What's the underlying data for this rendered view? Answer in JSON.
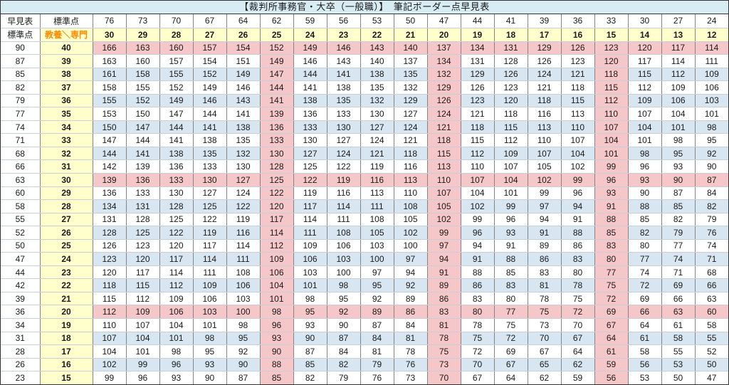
{
  "chart_data": {
    "type": "table",
    "title": "【裁判所事務官・大卒（一般職）】　筆記ボーダー点早見表",
    "corner": {
      "tl": "早見表",
      "tr": "標準点",
      "bl": "標準点",
      "br": "教養＼専門"
    },
    "col_headers_standard": [
      76,
      73,
      70,
      67,
      64,
      62,
      59,
      56,
      53,
      50,
      47,
      44,
      41,
      39,
      36,
      33,
      30,
      27,
      24
    ],
    "col_headers_raw": [
      30,
      29,
      28,
      27,
      26,
      25,
      24,
      23,
      22,
      21,
      20,
      19,
      18,
      17,
      16,
      15,
      14,
      13,
      12
    ],
    "highlight": {
      "pink_col_indices": [
        5,
        10,
        15
      ],
      "pink_row_indices": [
        0,
        10,
        20
      ]
    },
    "rows": [
      {
        "standard": 90,
        "raw": 40,
        "shade": "pink",
        "values": [
          166,
          163,
          160,
          157,
          154,
          152,
          149,
          146,
          143,
          140,
          137,
          134,
          131,
          129,
          126,
          123,
          120,
          117,
          114
        ]
      },
      {
        "standard": 87,
        "raw": 39,
        "shade": "white",
        "values": [
          163,
          160,
          157,
          154,
          151,
          149,
          146,
          143,
          140,
          137,
          134,
          131,
          128,
          126,
          123,
          120,
          117,
          114,
          111
        ]
      },
      {
        "standard": 85,
        "raw": 38,
        "shade": "blue",
        "values": [
          161,
          158,
          155,
          152,
          149,
          147,
          144,
          141,
          138,
          135,
          132,
          129,
          126,
          124,
          121,
          118,
          115,
          112,
          109
        ]
      },
      {
        "standard": 82,
        "raw": 37,
        "shade": "white",
        "values": [
          158,
          155,
          152,
          149,
          146,
          144,
          141,
          138,
          135,
          132,
          129,
          126,
          123,
          121,
          118,
          115,
          112,
          109,
          106
        ]
      },
      {
        "standard": 79,
        "raw": 36,
        "shade": "blue",
        "values": [
          155,
          152,
          149,
          146,
          143,
          141,
          138,
          135,
          132,
          129,
          126,
          123,
          120,
          118,
          115,
          112,
          109,
          106,
          103
        ]
      },
      {
        "standard": 77,
        "raw": 35,
        "shade": "white",
        "values": [
          153,
          150,
          147,
          144,
          141,
          139,
          136,
          133,
          130,
          127,
          124,
          121,
          118,
          116,
          113,
          110,
          107,
          104,
          101
        ]
      },
      {
        "standard": 74,
        "raw": 34,
        "shade": "blue",
        "values": [
          150,
          147,
          144,
          141,
          138,
          136,
          133,
          130,
          127,
          124,
          121,
          118,
          115,
          113,
          110,
          107,
          104,
          101,
          98
        ]
      },
      {
        "standard": 71,
        "raw": 33,
        "shade": "white",
        "values": [
          147,
          144,
          141,
          138,
          135,
          133,
          130,
          127,
          124,
          121,
          118,
          115,
          112,
          110,
          107,
          104,
          101,
          98,
          95
        ]
      },
      {
        "standard": 68,
        "raw": 32,
        "shade": "blue",
        "values": [
          144,
          141,
          138,
          135,
          132,
          130,
          127,
          124,
          121,
          118,
          115,
          112,
          109,
          107,
          104,
          101,
          98,
          95,
          92
        ]
      },
      {
        "standard": 66,
        "raw": 31,
        "shade": "white",
        "values": [
          142,
          139,
          136,
          133,
          130,
          128,
          125,
          122,
          119,
          116,
          113,
          110,
          107,
          105,
          102,
          99,
          96,
          93,
          90
        ]
      },
      {
        "standard": 63,
        "raw": 30,
        "shade": "pink",
        "values": [
          139,
          136,
          133,
          130,
          127,
          125,
          122,
          119,
          116,
          113,
          110,
          107,
          104,
          102,
          99,
          96,
          93,
          90,
          87
        ]
      },
      {
        "standard": 60,
        "raw": 29,
        "shade": "white",
        "values": [
          136,
          133,
          130,
          127,
          124,
          122,
          119,
          116,
          113,
          110,
          107,
          104,
          101,
          99,
          96,
          93,
          90,
          87,
          84
        ]
      },
      {
        "standard": 58,
        "raw": 28,
        "shade": "blue",
        "values": [
          134,
          131,
          128,
          125,
          122,
          120,
          117,
          114,
          111,
          108,
          105,
          102,
          99,
          97,
          94,
          91,
          88,
          85,
          82
        ]
      },
      {
        "standard": 55,
        "raw": 27,
        "shade": "white",
        "values": [
          131,
          128,
          125,
          122,
          119,
          117,
          114,
          111,
          108,
          105,
          102,
          99,
          96,
          94,
          91,
          88,
          85,
          82,
          79
        ]
      },
      {
        "standard": 52,
        "raw": 26,
        "shade": "blue",
        "values": [
          128,
          125,
          122,
          119,
          116,
          114,
          111,
          108,
          105,
          102,
          99,
          96,
          93,
          91,
          88,
          85,
          82,
          79,
          76
        ]
      },
      {
        "standard": 50,
        "raw": 25,
        "shade": "white",
        "values": [
          126,
          123,
          120,
          117,
          114,
          112,
          109,
          106,
          103,
          100,
          97,
          94,
          91,
          89,
          86,
          83,
          80,
          77,
          74
        ]
      },
      {
        "standard": 47,
        "raw": 24,
        "shade": "blue",
        "values": [
          123,
          120,
          117,
          114,
          111,
          109,
          106,
          103,
          100,
          97,
          94,
          91,
          88,
          86,
          83,
          80,
          77,
          74,
          71
        ]
      },
      {
        "standard": 44,
        "raw": 23,
        "shade": "white",
        "values": [
          120,
          117,
          114,
          111,
          108,
          106,
          103,
          100,
          97,
          94,
          91,
          88,
          85,
          83,
          80,
          77,
          74,
          71,
          68
        ]
      },
      {
        "standard": 42,
        "raw": 22,
        "shade": "blue",
        "values": [
          118,
          115,
          112,
          109,
          106,
          104,
          101,
          98,
          95,
          92,
          89,
          86,
          83,
          81,
          78,
          75,
          72,
          69,
          66
        ]
      },
      {
        "standard": 39,
        "raw": 21,
        "shade": "white",
        "values": [
          115,
          112,
          109,
          106,
          103,
          101,
          98,
          95,
          92,
          89,
          86,
          83,
          80,
          78,
          75,
          72,
          69,
          66,
          63
        ]
      },
      {
        "standard": 36,
        "raw": 20,
        "shade": "pink",
        "values": [
          112,
          109,
          106,
          103,
          100,
          98,
          95,
          92,
          89,
          86,
          83,
          80,
          77,
          75,
          72,
          69,
          66,
          63,
          60
        ]
      },
      {
        "standard": 34,
        "raw": 19,
        "shade": "white",
        "values": [
          110,
          107,
          104,
          101,
          98,
          96,
          93,
          90,
          87,
          84,
          81,
          78,
          75,
          73,
          70,
          67,
          64,
          61,
          58
        ]
      },
      {
        "standard": 31,
        "raw": 18,
        "shade": "blue",
        "values": [
          107,
          104,
          101,
          98,
          95,
          93,
          90,
          87,
          84,
          81,
          78,
          75,
          72,
          70,
          67,
          64,
          61,
          58,
          55
        ]
      },
      {
        "standard": 28,
        "raw": 17,
        "shade": "white",
        "values": [
          104,
          101,
          98,
          95,
          92,
          90,
          87,
          84,
          81,
          78,
          75,
          72,
          69,
          67,
          64,
          61,
          58,
          55,
          52
        ]
      },
      {
        "standard": 26,
        "raw": 16,
        "shade": "blue",
        "values": [
          102,
          99,
          96,
          93,
          90,
          88,
          85,
          82,
          79,
          76,
          73,
          70,
          67,
          65,
          62,
          59,
          56,
          53,
          50
        ]
      },
      {
        "standard": 23,
        "raw": 15,
        "shade": "white",
        "values": [
          99,
          96,
          93,
          90,
          87,
          85,
          82,
          79,
          76,
          73,
          70,
          67,
          64,
          62,
          59,
          56,
          53,
          50,
          47
        ]
      }
    ]
  },
  "colors": {
    "title_bg": "#D8ECF4",
    "header_yellow": "#FFFFCC",
    "pink": "#F6C7C9",
    "blue": "#D8E6F2",
    "white": "#FFFFFF",
    "orange_text": "#FF8C00",
    "grid_v": "#848484",
    "grid_h": "#C9CFD6",
    "frame": "#333333",
    "text": "#1A1A1A"
  }
}
